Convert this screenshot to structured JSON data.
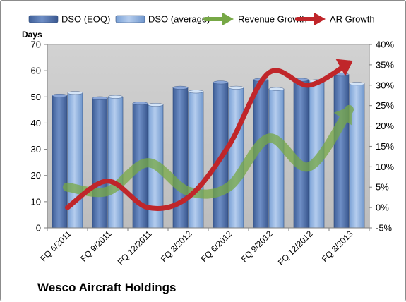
{
  "chart_data": {
    "type": "bar",
    "title": "Wesco Aircraft Holdings",
    "y_left_label": "Days",
    "categories": [
      "FQ 6/2011",
      "FQ 9/2011",
      "FQ 12/2011",
      "FQ 3/2012",
      "FQ 6/2012",
      "FQ 9/2012",
      "FQ 12/2012",
      "FQ 3/2013"
    ],
    "y_left": {
      "min": 0,
      "max": 70,
      "step": 10,
      "ticks": [
        "0",
        "10",
        "20",
        "30",
        "40",
        "50",
        "60",
        "70"
      ]
    },
    "y_right": {
      "min": -5,
      "max": 40,
      "step": 5,
      "ticks": [
        "-5%",
        "0%",
        "5%",
        "10%",
        "15%",
        "20%",
        "25%",
        "30%",
        "35%",
        "40%"
      ]
    },
    "bar_series": [
      {
        "name": "DSO (EOQ)",
        "color": "#4f6fa8",
        "values": [
          50.5,
          49.5,
          47.5,
          53.5,
          55.5,
          56.5,
          56.5,
          58.5
        ]
      },
      {
        "name": "DSO (average)",
        "color": "#8fb3e0",
        "values": [
          51.5,
          50,
          47,
          52,
          53.5,
          53,
          56,
          55
        ]
      }
    ],
    "line_series": [
      {
        "name": "Revenue Growth",
        "color": "#77a846",
        "axis": "right",
        "values": [
          5,
          4,
          11,
          4,
          5,
          17,
          10,
          24
        ]
      },
      {
        "name": "AR Growth",
        "color": "#c0262a",
        "axis": "right",
        "values": [
          0,
          6.5,
          0,
          2.5,
          15,
          33,
          30,
          35.5
        ]
      }
    ],
    "legend": [
      {
        "name": "DSO (EOQ)",
        "kind": "bar",
        "color": "#4f6fa8"
      },
      {
        "name": "DSO (average)",
        "kind": "bar",
        "color": "#8fb3e0"
      },
      {
        "name": "Revenue Growth",
        "kind": "arrow",
        "color": "#77a846"
      },
      {
        "name": "AR Growth",
        "kind": "arrow",
        "color": "#c0262a"
      }
    ],
    "legend_position": "top",
    "plot_background": "#c6c6c6",
    "grid": false
  }
}
